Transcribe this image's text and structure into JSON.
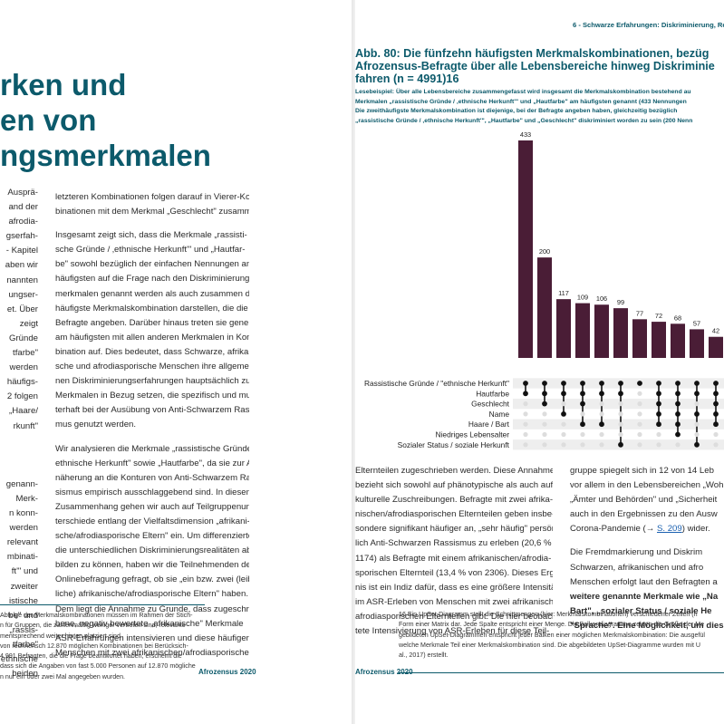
{
  "left_page": {
    "title_lines": [
      "rken und",
      "en von",
      "ngsmerkmalen"
    ],
    "col_left_lines": [
      "Ausprä-",
      "and der",
      "afrodia-",
      "gserfah-",
      "- Kapitel",
      "aben wir",
      "nannten",
      "ungser-",
      "et. Über",
      "zeigt",
      "Gründe",
      "tfarbe\"",
      "werden",
      "häufigs-",
      "2 folgen",
      "„Haare/",
      "rkunft\"",
      "",
      "",
      "",
      "genann-",
      "Merk-",
      "n konn-",
      "werden",
      "relevant",
      "mbinati-",
      "ft'\" und",
      "zweiter",
      "istische",
      "be\" und",
      "„rassis-",
      "tfarbe\"",
      "ethnische",
      "beiden"
    ],
    "col_mid_p1": [
      "letzteren Kombinationen folgen darauf in Vierer-Kom-",
      "binationen mit dem Merkmal „Geschlecht\" zusammen."
    ],
    "col_mid_p2": [
      "Insgesamt zeigt sich, dass die Merkmale „rassisti-",
      "sche Gründe / ‚ethnische Herkunft'\" und „Hautfar-",
      "be\" sowohl bezüglich der einfachen Nennungen am",
      "häufigsten auf die Frage nach den Diskriminierungs-",
      "merkmalen genannt werden als auch zusammen die",
      "häufigste Merkmalskombination darstellen, die die",
      "Befragte angeben. Darüber hinaus treten sie generell",
      "am häufigsten mit allen anderen Merkmalen in Kom-",
      "bination auf. Dies bedeutet, dass Schwarze, afrikani-",
      "sche und afrodiasporische Menschen ihre allgemei-",
      "nen Diskriminierungserfahrungen hauptsächlich zu",
      "Merkmalen in Bezug setzen, die spezifisch und mus-",
      "terhaft bei der Ausübung von Anti-Schwarzem Rassis-",
      "mus genutzt werden."
    ],
    "col_mid_p3": [
      "Wir analysieren die Merkmale „rassistische Gründe /",
      "ethnische Herkunft\" sowie „Hautfarbe\", da sie zur An-",
      "näherung an die Konturen von Anti-Schwarzem Ras-",
      "sismus empirisch ausschlaggebend sind. In diesem",
      "Zusammenhang gehen wir auch auf Teilgruppenun-",
      "terschiede entlang der Vielfaltsdimension „afrikani-",
      "sche/afrodiasporische Eltern\" ein. Um differenzierter",
      "die unterschiedlichen Diskriminierungsrealitäten ab-",
      "bilden zu können, haben wir die Teilnehmenden der",
      "Onlinebefragung gefragt, ob sie „ein bzw. zwei (leib-",
      "liche) afrikanische/afrodiasporische Eltern\" haben.",
      "Dem liegt die Annahme zu Grunde, dass zugeschrie-",
      "bene, negativ bewertete „afrikanische\" Merkmale",
      "ASR-Erfahrungen intensivieren und diese häufiger",
      "Menschen mit zwei afrikanischen/afrodiasporischen"
    ],
    "footnote_lines": [
      "Abfolge der Merkmalskombinationen müssen im Rahmen der Stich-",
      "n für Gruppen, die zahlenmäßig weniger vertreten sind, relevante",
      "mentsprechend weiter hinten platziert sind.",
      "von rechnerisch 12.870 möglichen Kombinationen bei Berücksich-",
      "4.991 Befragten, die die Frage beantwortet haben, erscheint die",
      "dass sich die Angaben von fast 5.000 Personen auf 12.870 mögliche",
      "n nur ein oder zwei Mal angegeben wurden."
    ],
    "page_footer": "Afrozensus 2020"
  },
  "right_page": {
    "running_head": "6 - Schwarze Erfahrungen: Diskriminierung, Res",
    "figure_title_lines": [
      "Abb. 80: Die fünfzehn häufigsten Merkmalskombinationen, bezüg",
      "Afrozensus-Befragte über alle Lebensbereiche hinweg Diskriminie",
      "fahren (n = 4991)16"
    ],
    "reading_lines": [
      "Lesebeispiel: Über alle Lebensbereiche zusammengefasst wird insgesamt die Merkmalskombination bestehend au",
      "Merkmalen „rassistische Gründe / ‚ethnische Herkunft'\" und „Hautfarbe\" am häufigsten genannt (433 Nennungen",
      "Die zweithäufigste Merkmalskombination ist diejenige, bei der Befragte angeben haben, gleichzeitig bezüglich",
      "„rassistische Gründe / ‚ethnische Herkunft'\", „Hautfarbe\" und „Geschlecht\" diskriminiert worden zu sein (200 Nenn"
    ],
    "col1_lines": [
      "Elternteilen zugeschrieben werden. Diese Annahme",
      "bezieht sich sowohl auf phänotypische als auch auf",
      "kulturelle Zuschreibungen. Befragte mit zwei afrika-",
      "nischen/afrodiasporischen Elternteilen geben insbe-",
      "sondere signifikant häufiger an, „sehr häufig\" persön-",
      "lich Anti-Schwarzen Rassismus zu erleben (20,6 % von",
      "1174) als Befragte mit einem afrikanischen/afrodia-",
      "sporischen Elternteil (13,4 % von 2306). Dieses Ergeb-",
      "nis ist ein Indiz dafür, dass es eine größere Intensität",
      "im ASR-Erleben von Menschen mit zwei afrikanischen/",
      "afrodiasporischen Elternteilen gibt. Die hier beobach-",
      "tete Intensivierung von ASR-Erleben für diese Teil-"
    ],
    "col2_p1": [
      "gruppe spiegelt sich in 12 von 14 Leb",
      "vor allem in den Lebensbereichen „Woh",
      "„Ämter und Behörden\" und „Sicherheit",
      "auch in den Ergebnissen zu den Ausw",
      "Corona-Pandemie (→ "
    ],
    "col2_link": "S. 209",
    "col2_link_after": ") wider.",
    "col2_p2": [
      "Die Fremdmarkierung und Diskrim",
      "Schwarzen, afrikanischen und afro",
      "Menschen erfolgt laut den Befragten a",
      "weitere genannte Merkmale wie „Na",
      "Bart\", „sozialer Status / soziale He",
      "\"Sprache\". Eine Möglichkeit, um dies"
    ],
    "footnote_lines": [
      "16 Ein UpSet-Diagramm stellt die Schnittmengen (hier: Merkmalskombinationen) verschiedener Zeilen (h",
      "Form einer Matrix dar. Jede Spalte entspricht einer Menge. Die Balkendiagramme zeigen die Größe der Me",
      "gebildeten UpSet-Diagrammen entspricht jeder Balken einer möglichen Merkmalskombination: Die ausgefül",
      "welche Merkmale Teil einer Merkmalskombination sind. Die abgebildeten UpSet-Diagramme wurden mit U",
      "al., 2017) erstellt."
    ],
    "footnote_link": "2017",
    "page_footer": "Afrozensus 2020"
  },
  "chart_data": {
    "type": "bar",
    "subtype": "upset",
    "values": [
      433,
      200,
      117,
      109,
      106,
      99,
      77,
      72,
      68,
      57,
      42
    ],
    "bar_color": "#4a1d36",
    "sets": [
      "Rassistische Gründe / \"ethnische Herkunft\"",
      "Hautfarbe",
      "Geschlecht",
      "Name",
      "Haare / Bart",
      "Niedriges Lebensalter",
      "Sozialer Status / soziale Herkunft"
    ],
    "matrix": [
      [
        1,
        1,
        1,
        1,
        1,
        1,
        1,
        1,
        1,
        1,
        1
      ],
      [
        1,
        1,
        1,
        1,
        1,
        1,
        0,
        1,
        1,
        1,
        1
      ],
      [
        0,
        1,
        0,
        1,
        0,
        0,
        0,
        1,
        1,
        0,
        1
      ],
      [
        0,
        0,
        1,
        0,
        0,
        0,
        0,
        1,
        1,
        1,
        1
      ],
      [
        0,
        0,
        0,
        1,
        1,
        0,
        0,
        1,
        1,
        0,
        1
      ],
      [
        0,
        0,
        0,
        0,
        0,
        0,
        0,
        0,
        1,
        0,
        0
      ],
      [
        0,
        0,
        0,
        0,
        0,
        1,
        0,
        0,
        0,
        1,
        0
      ]
    ],
    "dot_on": "#111111",
    "dot_off": "#dddddd",
    "stripe": "#eeeeee"
  }
}
